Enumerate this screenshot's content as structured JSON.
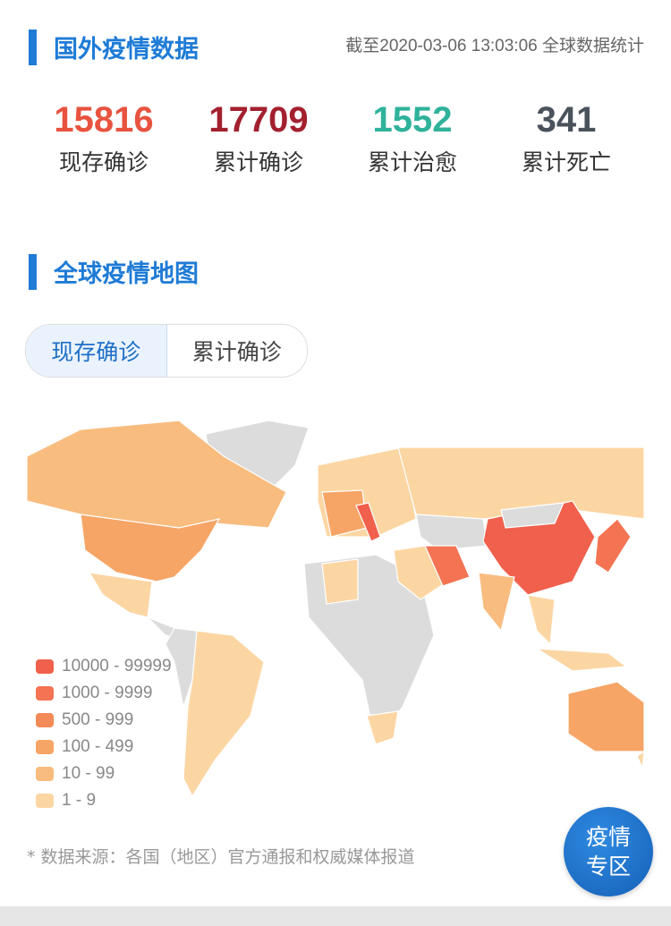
{
  "header": {
    "title": "国外疫情数据",
    "timestamp": "截至2020-03-06 13:03:06 全球数据统计"
  },
  "stats": [
    {
      "value": "15816",
      "label": "现存确诊",
      "color": "#e8533f"
    },
    {
      "value": "17709",
      "label": "累计确诊",
      "color": "#a3202f"
    },
    {
      "value": "1552",
      "label": "累计治愈",
      "color": "#2fb29b"
    },
    {
      "value": "341",
      "label": "累计死亡",
      "color": "#4a525c"
    }
  ],
  "map_section": {
    "title": "全球疫情地图",
    "tabs": [
      {
        "label": "现存确诊",
        "active": true
      },
      {
        "label": "累计确诊",
        "active": false
      }
    ],
    "legend": [
      {
        "label": "10000 - 99999",
        "color": "#f0604c"
      },
      {
        "label": "1000 - 9999",
        "color": "#f37353"
      },
      {
        "label": "500 - 999",
        "color": "#f48a57"
      },
      {
        "label": "100 - 499",
        "color": "#f6a567"
      },
      {
        "label": "10 - 99",
        "color": "#f8bc7f"
      },
      {
        "label": "1 - 9",
        "color": "#fbd6a3"
      }
    ],
    "no_data_color": "#dcdcdc"
  },
  "footer": {
    "source_note": "* 数据来源：各国（地区）官方通报和权威媒体报道",
    "fab_line1": "疫情",
    "fab_line2": "专区"
  }
}
